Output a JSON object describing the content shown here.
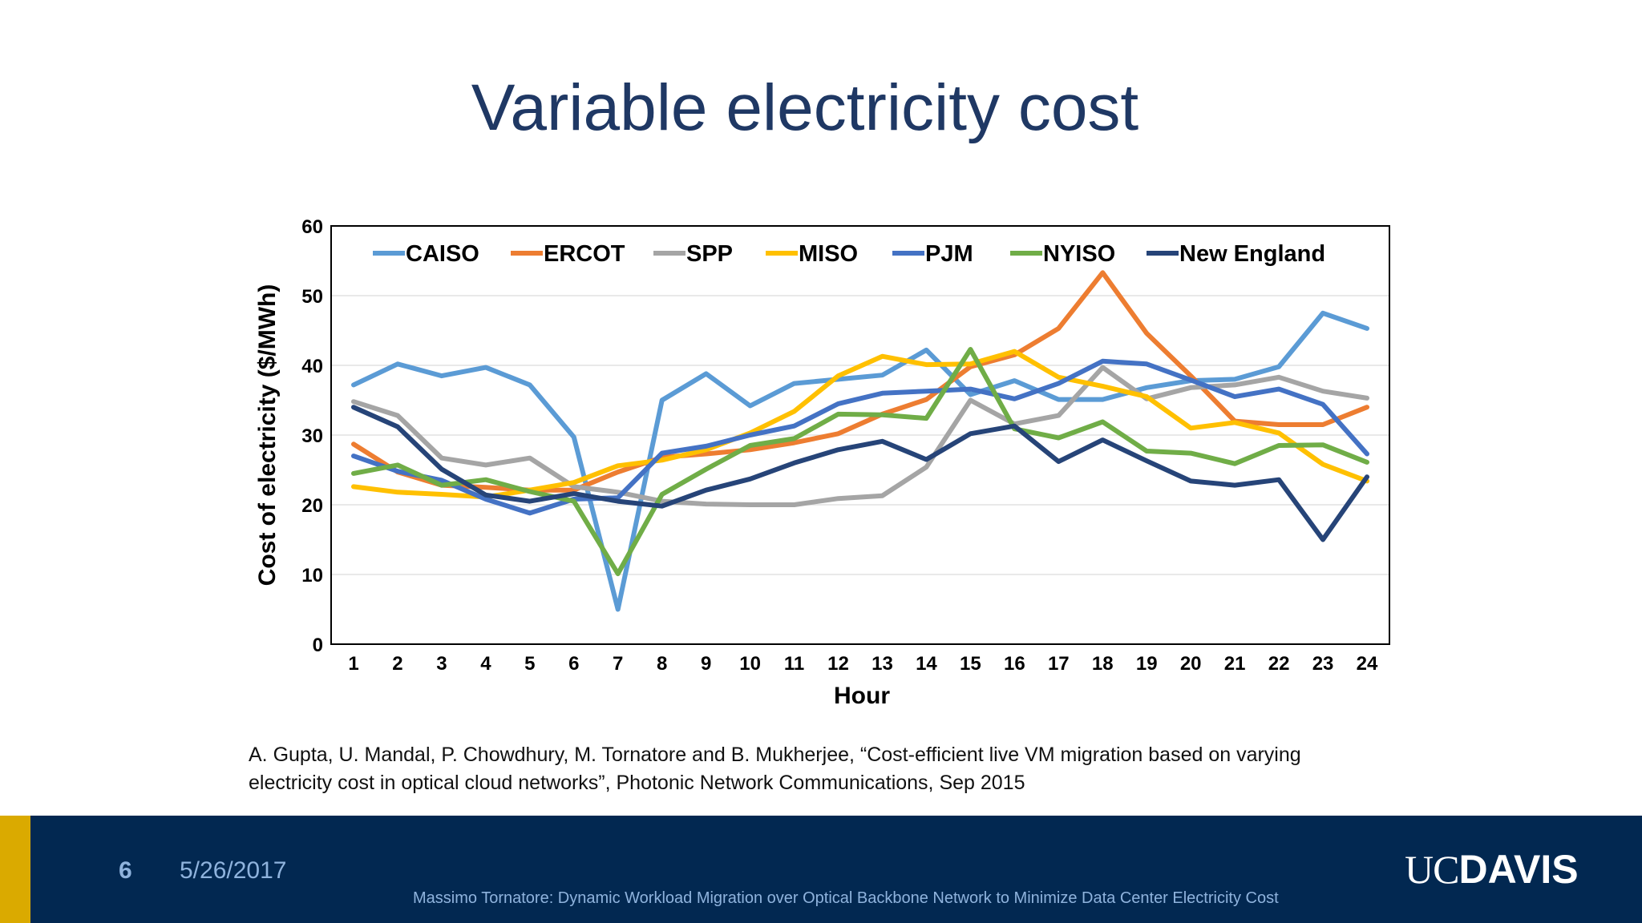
{
  "slide": {
    "title": "Variable electricity cost",
    "citation_line1": "A. Gupta, U. Mandal, P. Chowdhury, M. Tornatore and B. Mukherjee, “Cost-efficient live VM migration based on varying",
    "citation_line2": "electricity cost in optical cloud networks”, Photonic Network Communications, Sep 2015"
  },
  "footer": {
    "slide_number": "6",
    "date": "5/26/2017",
    "text": "Massimo Tornatore: Dynamic Workload Migration over Optical Backbone Network to Minimize Data Center Electricity Cost",
    "logo_uc": "UC",
    "logo_davis": "DAVIS",
    "bar_color": "#022851",
    "accent_color": "#daaa00"
  },
  "chart_data": {
    "type": "line",
    "xlabel": "Hour",
    "ylabel": "Cost of electricity ($/MWh)",
    "ylim": [
      0,
      60
    ],
    "yticks": [
      0,
      10,
      20,
      30,
      40,
      50,
      60
    ],
    "x": [
      1,
      2,
      3,
      4,
      5,
      6,
      7,
      8,
      9,
      10,
      11,
      12,
      13,
      14,
      15,
      16,
      17,
      18,
      19,
      20,
      21,
      22,
      23,
      24
    ],
    "grid": true,
    "legend": "top-inside",
    "series": [
      {
        "name": "CAISO",
        "color": "#5b9bd5",
        "values": [
          37.2,
          40.2,
          38.5,
          39.7,
          37.2,
          29.7,
          5.0,
          35.0,
          38.8,
          34.2,
          37.4,
          38.0,
          38.6,
          42.2,
          35.8,
          37.8,
          35.1,
          35.1,
          36.8,
          37.8,
          38.0,
          39.8,
          47.5,
          45.3
        ]
      },
      {
        "name": "ERCOT",
        "color": "#ed7d31",
        "values": [
          28.7,
          24.7,
          22.8,
          22.5,
          22.1,
          22.1,
          24.7,
          26.8,
          27.3,
          27.9,
          28.9,
          30.2,
          33.0,
          35.1,
          39.8,
          41.5,
          45.3,
          53.3,
          44.6,
          38.5,
          32.0,
          31.5,
          31.5,
          34.0
        ]
      },
      {
        "name": "SPP",
        "color": "#a5a5a5",
        "values": [
          34.8,
          32.8,
          26.7,
          25.7,
          26.7,
          22.6,
          21.8,
          20.5,
          20.1,
          20.0,
          20.0,
          20.9,
          21.3,
          25.4,
          35.0,
          31.6,
          32.8,
          39.7,
          35.2,
          36.8,
          37.2,
          38.3,
          36.3,
          35.3
        ]
      },
      {
        "name": "MISO",
        "color": "#ffc000",
        "values": [
          22.6,
          21.8,
          21.5,
          21.1,
          22.1,
          23.2,
          25.6,
          26.4,
          27.9,
          30.3,
          33.4,
          38.5,
          41.3,
          40.1,
          40.2,
          42.0,
          38.3,
          37.0,
          35.5,
          31.0,
          31.8,
          30.3,
          25.8,
          23.4
        ]
      },
      {
        "name": "PJM",
        "color": "#4472c4",
        "values": [
          27.0,
          24.8,
          23.5,
          20.8,
          18.8,
          20.8,
          21.0,
          27.4,
          28.4,
          30.0,
          31.3,
          34.5,
          36.0,
          36.3,
          36.6,
          35.2,
          37.4,
          40.6,
          40.2,
          37.9,
          35.5,
          36.6,
          34.4,
          27.3
        ]
      },
      {
        "name": "NYISO",
        "color": "#70ad47",
        "values": [
          24.5,
          25.7,
          22.8,
          23.6,
          21.9,
          20.5,
          10.1,
          21.5,
          25.1,
          28.5,
          29.5,
          33.0,
          32.9,
          32.4,
          42.3,
          30.9,
          29.6,
          31.9,
          27.7,
          27.4,
          25.9,
          28.5,
          28.6,
          26.1
        ]
      },
      {
        "name": "New England",
        "color": "#264478",
        "values": [
          34.0,
          31.2,
          25.1,
          21.4,
          20.5,
          21.6,
          20.5,
          19.8,
          22.1,
          23.7,
          26.0,
          27.9,
          29.1,
          26.5,
          30.2,
          31.3,
          26.2,
          29.3,
          26.3,
          23.4,
          22.8,
          23.6,
          15.0,
          24.0
        ]
      }
    ]
  }
}
